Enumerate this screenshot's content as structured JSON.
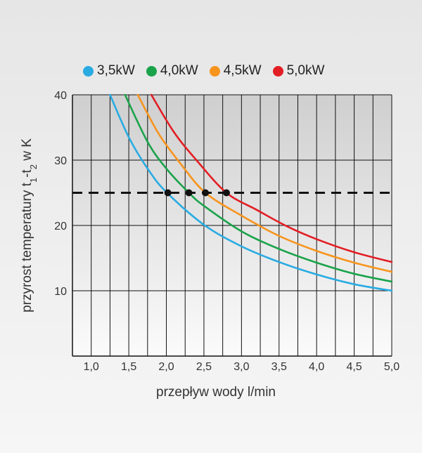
{
  "chart_data": {
    "type": "line",
    "series": [
      {
        "name": "3,5kW",
        "color": "#29abe2",
        "x": [
          1.25,
          1.5,
          1.75,
          2.0,
          2.5,
          3.0,
          3.5,
          4.0,
          4.5,
          5.0
        ],
        "values": [
          40,
          33.5,
          28.7,
          25.1,
          20.1,
          16.8,
          14.4,
          12.5,
          11.0,
          10.0
        ]
      },
      {
        "name": "4,0kW",
        "color": "#1aa34a",
        "x": [
          1.45,
          1.75,
          2.0,
          2.3,
          2.5,
          3.0,
          3.5,
          4.0,
          4.5,
          5.0
        ],
        "values": [
          40,
          32.8,
          28.7,
          25.0,
          23.0,
          19.1,
          16.4,
          14.3,
          12.6,
          11.4
        ]
      },
      {
        "name": "4,5kW",
        "color": "#f7941d",
        "x": [
          1.62,
          1.9,
          2.2,
          2.52,
          3.0,
          3.5,
          4.0,
          4.5,
          5.0
        ],
        "values": [
          40,
          34.0,
          29.3,
          25.0,
          21.5,
          18.4,
          16.1,
          14.3,
          12.9
        ]
      },
      {
        "name": "5,0kW",
        "color": "#e31e24",
        "x": [
          1.8,
          2.1,
          2.4,
          2.8,
          3.2,
          3.6,
          4.0,
          4.5,
          5.0
        ],
        "values": [
          40,
          34.3,
          30.0,
          25.0,
          22.4,
          19.9,
          17.9,
          15.9,
          14.4
        ]
      }
    ],
    "reference_line": {
      "y": 25,
      "style": "dashed"
    },
    "markers": [
      {
        "series": "3,5kW",
        "x": 2.02,
        "y": 25
      },
      {
        "series": "4,0kW",
        "x": 2.3,
        "y": 25
      },
      {
        "series": "4,5kW",
        "x": 2.52,
        "y": 25
      },
      {
        "series": "5,0kW",
        "x": 2.8,
        "y": 25
      }
    ],
    "xlim": [
      0.75,
      5.0
    ],
    "ylim": [
      0,
      40
    ],
    "xticks": [
      "1,0",
      "1,5",
      "2,0",
      "2,5",
      "3,0",
      "3,5",
      "4,0",
      "4,5",
      "5,0"
    ],
    "xtick_values": [
      1.0,
      1.5,
      2.0,
      2.5,
      3.0,
      3.5,
      4.0,
      4.5,
      5.0
    ],
    "yticks": [
      "10",
      "20",
      "30",
      "40"
    ],
    "ytick_values": [
      10,
      20,
      30,
      40
    ],
    "grid": true,
    "xlabel": "przepływ wody l/min",
    "ylabel": {
      "prefix": "przyrost temperatury t",
      "sub1": "1",
      "middle": "-t",
      "sub2": "2",
      "suffix": " w K"
    },
    "legend_position": "top"
  }
}
